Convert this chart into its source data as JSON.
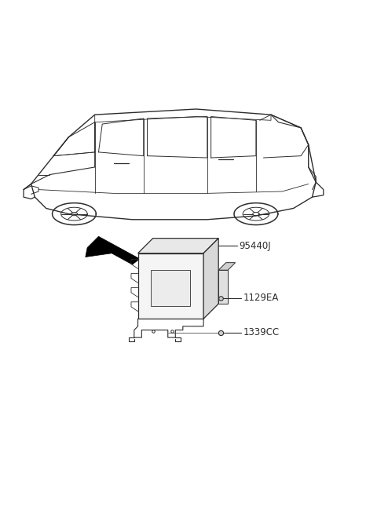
{
  "background_color": "#ffffff",
  "line_color": "#2d2d2d",
  "fig_width": 4.8,
  "fig_height": 6.55,
  "dpi": 100,
  "part_labels": [
    {
      "text": "95440J",
      "fontsize": 8.5
    },
    {
      "text": "1129EA",
      "fontsize": 8.5
    },
    {
      "text": "1339CC",
      "fontsize": 8.5
    }
  ]
}
